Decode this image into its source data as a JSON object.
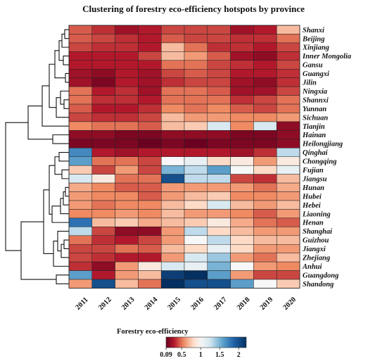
{
  "chart_data": {
    "type": "heatmap",
    "title": "Clustering of forestry eco-efficiency hotspots by province",
    "columns": [
      "2011",
      "2012",
      "2013",
      "2014",
      "2015",
      "2016",
      "2017",
      "2018",
      "2019",
      "2020"
    ],
    "rows": [
      "Shanxi",
      "Beijing",
      "Xinjiang",
      "Inner Mongolia",
      "Gansu",
      "Guangxi",
      "Jilin",
      "Ningxia",
      "Shannxi",
      "Yunnan",
      "Sichuan",
      "Tianjin",
      "Hainan",
      "Heilongjiang",
      "Qinghai",
      "Chongqing",
      "Fujian",
      "Jiangsu",
      "Hunan",
      "Hubei",
      "Hebei",
      "Liaoning",
      "Henan",
      "Shanghai",
      "Guizhou",
      "Jiangxi",
      "Zhejiang",
      "Anhui",
      "Guangdong",
      "Shandong"
    ],
    "values": [
      [
        0.45,
        0.35,
        0.25,
        0.3,
        0.4,
        0.4,
        0.4,
        0.25,
        0.3,
        0.7
      ],
      [
        0.45,
        0.4,
        0.35,
        0.3,
        0.45,
        0.4,
        0.4,
        0.35,
        0.35,
        0.5
      ],
      [
        0.4,
        0.35,
        0.35,
        0.3,
        0.7,
        0.5,
        0.35,
        0.35,
        0.3,
        0.4
      ],
      [
        0.3,
        0.3,
        0.3,
        0.4,
        0.7,
        0.6,
        0.45,
        0.25,
        0.2,
        0.35
      ],
      [
        0.3,
        0.3,
        0.3,
        0.3,
        0.5,
        0.5,
        0.4,
        0.35,
        0.3,
        0.4
      ],
      [
        0.25,
        0.2,
        0.3,
        0.25,
        0.4,
        0.45,
        0.4,
        0.3,
        0.3,
        0.35
      ],
      [
        0.25,
        0.15,
        0.3,
        0.25,
        0.35,
        0.4,
        0.4,
        0.25,
        0.2,
        0.35
      ],
      [
        0.5,
        0.3,
        0.35,
        0.25,
        0.5,
        0.5,
        0.45,
        0.25,
        0.25,
        0.4
      ],
      [
        0.5,
        0.35,
        0.35,
        0.3,
        0.5,
        0.5,
        0.5,
        0.35,
        0.4,
        0.5
      ],
      [
        0.45,
        0.3,
        0.3,
        0.35,
        0.55,
        0.5,
        0.55,
        0.45,
        0.4,
        0.5
      ],
      [
        0.4,
        0.35,
        0.35,
        0.4,
        0.7,
        0.6,
        0.6,
        0.55,
        0.55,
        0.6
      ],
      [
        0.55,
        0.5,
        0.5,
        0.45,
        0.7,
        0.75,
        1.2,
        0.55,
        1.2,
        0.2
      ],
      [
        0.2,
        0.2,
        0.15,
        0.15,
        0.2,
        0.2,
        0.2,
        0.15,
        0.15,
        0.2
      ],
      [
        0.15,
        0.15,
        0.15,
        0.1,
        0.15,
        0.1,
        0.15,
        0.15,
        0.15,
        0.2
      ],
      [
        1.7,
        0.3,
        0.25,
        0.3,
        0.3,
        0.3,
        0.3,
        0.25,
        0.35,
        1.3
      ],
      [
        1.6,
        0.5,
        0.5,
        0.4,
        1.0,
        1.1,
        0.8,
        0.9,
        0.6,
        0.9
      ],
      [
        0.75,
        0.4,
        0.6,
        0.4,
        1.5,
        1.3,
        1.6,
        1.0,
        0.8,
        1.1
      ],
      [
        1.2,
        0.9,
        0.5,
        0.5,
        2.0,
        1.3,
        1.3,
        0.4,
        0.35,
        0.7
      ],
      [
        0.65,
        0.55,
        0.45,
        0.45,
        0.6,
        0.6,
        0.6,
        0.6,
        0.5,
        0.65
      ],
      [
        0.6,
        0.55,
        0.55,
        0.45,
        0.6,
        0.7,
        0.75,
        0.55,
        0.55,
        0.6
      ],
      [
        0.6,
        0.5,
        0.55,
        0.55,
        0.7,
        0.8,
        1.2,
        0.7,
        0.6,
        0.7
      ],
      [
        0.55,
        0.55,
        0.6,
        0.55,
        0.7,
        0.6,
        0.6,
        0.55,
        0.45,
        0.6
      ],
      [
        1.8,
        0.7,
        0.75,
        0.65,
        0.7,
        0.75,
        0.9,
        0.65,
        0.5,
        0.45
      ],
      [
        1.3,
        0.4,
        0.2,
        0.2,
        0.6,
        1.3,
        0.8,
        0.7,
        0.6,
        0.6
      ],
      [
        0.5,
        0.35,
        0.3,
        0.4,
        0.6,
        1.0,
        1.3,
        0.8,
        0.7,
        0.7
      ],
      [
        0.4,
        0.4,
        0.5,
        0.45,
        0.7,
        0.8,
        1.1,
        0.8,
        0.6,
        0.6
      ],
      [
        0.4,
        0.35,
        0.3,
        0.3,
        0.6,
        1.2,
        1.4,
        0.6,
        0.5,
        0.7
      ],
      [
        0.35,
        0.2,
        0.6,
        0.9,
        1.2,
        1.1,
        1.5,
        1.0,
        0.6,
        0.55
      ],
      [
        1.6,
        0.3,
        0.6,
        0.7,
        2.1,
        2.2,
        1.6,
        0.6,
        0.4,
        0.4
      ],
      [
        0.6,
        2.0,
        0.7,
        0.5,
        2.2,
        2.0,
        2.0,
        1.6,
        1.0,
        0.75
      ]
    ],
    "colorbar": {
      "title": "Forestry eco-efficiency",
      "ticks": [
        "0.09",
        "0.5",
        "1",
        "1.5",
        "2"
      ],
      "range": [
        0.09,
        2.2
      ],
      "colors": [
        "#b2182b",
        "#ef8a62",
        "#f7f7f7",
        "#67a9cf",
        "#053061"
      ]
    },
    "dendrogram": "rows",
    "grid": true
  }
}
